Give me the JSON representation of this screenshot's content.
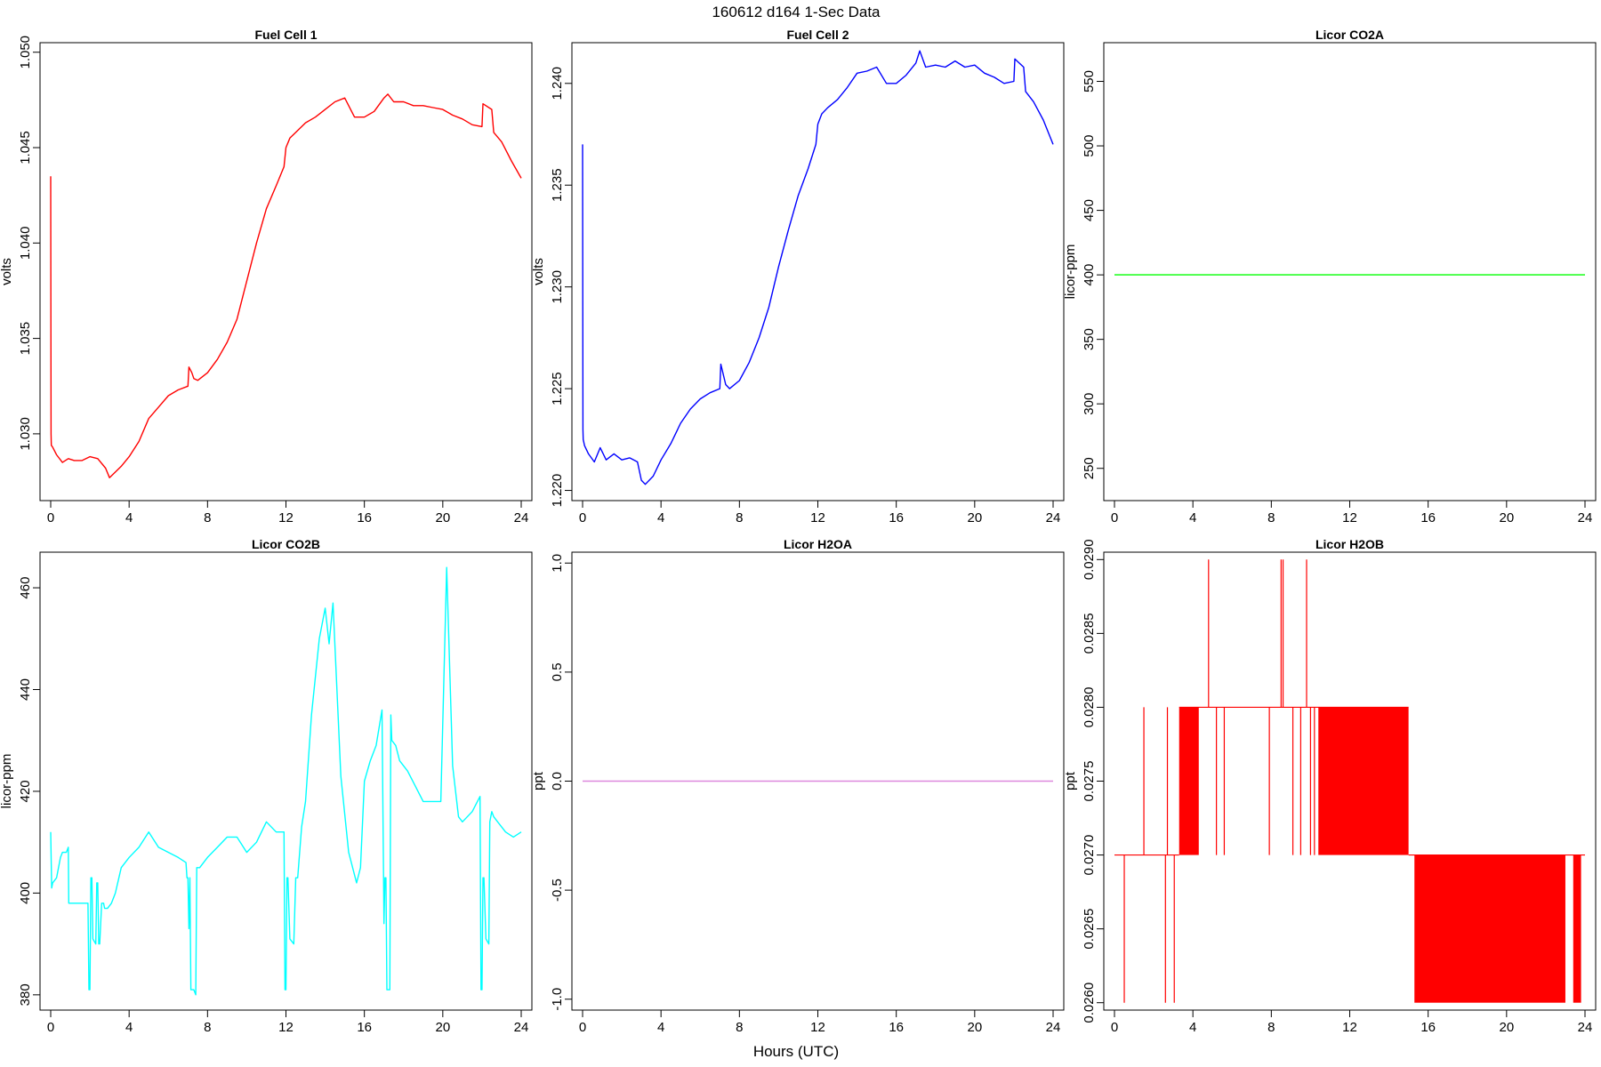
{
  "figure": {
    "title": "160612   d164   1-Sec Data",
    "xlabel": "Hours (UTC)"
  },
  "chart_data": [
    {
      "type": "line",
      "title": "Fuel Cell 1",
      "ylabel": "volts",
      "color": "#ff0000",
      "xlim": [
        0,
        24
      ],
      "ylim": [
        1.0265,
        1.0505
      ],
      "xticks": [
        0,
        4,
        8,
        12,
        16,
        20,
        24
      ],
      "xtick_labels": [
        "0",
        "4",
        "8",
        "12",
        "16",
        "20",
        "24"
      ],
      "yticks": [
        1.03,
        1.035,
        1.04,
        1.045,
        1.05
      ],
      "ytick_labels": [
        "1.030",
        "1.035",
        "1.040",
        "1.045",
        "1.050"
      ],
      "x": [
        0,
        0.02,
        0.03,
        0.1,
        0.3,
        0.6,
        0.9,
        1.2,
        1.6,
        2.0,
        2.4,
        2.8,
        3.0,
        3.2,
        3.6,
        4.0,
        4.5,
        5.0,
        5.5,
        6.0,
        6.5,
        7.0,
        7.05,
        7.2,
        7.3,
        7.5,
        8.0,
        8.5,
        9.0,
        9.5,
        10.0,
        10.5,
        11.0,
        11.5,
        11.9,
        12.0,
        12.2,
        12.5,
        13.0,
        13.5,
        14.0,
        14.5,
        15.0,
        15.5,
        16.0,
        16.5,
        17.0,
        17.2,
        17.5,
        18.0,
        18.5,
        19.0,
        19.5,
        20.0,
        20.5,
        21.0,
        21.5,
        22.0,
        22.05,
        22.5,
        22.6,
        23.0,
        23.5,
        24.0
      ],
      "y": [
        1.0435,
        1.03,
        1.0294,
        1.0293,
        1.0289,
        1.0285,
        1.0287,
        1.0286,
        1.0286,
        1.0288,
        1.0287,
        1.0282,
        1.0277,
        1.0279,
        1.0283,
        1.0288,
        1.0296,
        1.0308,
        1.0314,
        1.032,
        1.0323,
        1.0325,
        1.0335,
        1.0332,
        1.0329,
        1.0328,
        1.0332,
        1.0339,
        1.0348,
        1.036,
        1.038,
        1.04,
        1.0418,
        1.043,
        1.044,
        1.045,
        1.0455,
        1.0458,
        1.0463,
        1.0466,
        1.047,
        1.0474,
        1.0476,
        1.0466,
        1.0466,
        1.0469,
        1.0476,
        1.0478,
        1.0474,
        1.0474,
        1.0472,
        1.0472,
        1.0471,
        1.047,
        1.0467,
        1.0465,
        1.0462,
        1.0461,
        1.0473,
        1.047,
        1.0458,
        1.0453,
        1.0443,
        1.0434
      ]
    },
    {
      "type": "line",
      "title": "Fuel Cell 2",
      "ylabel": "volts",
      "color": "#0000ff",
      "xlim": [
        0,
        24
      ],
      "ylim": [
        1.2195,
        1.242
      ],
      "xticks": [
        0,
        4,
        8,
        12,
        16,
        20,
        24
      ],
      "xtick_labels": [
        "0",
        "4",
        "8",
        "12",
        "16",
        "20",
        "24"
      ],
      "yticks": [
        1.22,
        1.225,
        1.23,
        1.235,
        1.24
      ],
      "ytick_labels": [
        "1.220",
        "1.225",
        "1.230",
        "1.235",
        "1.240"
      ],
      "x": [
        0,
        0.02,
        0.03,
        0.1,
        0.3,
        0.6,
        0.9,
        1.2,
        1.6,
        2.0,
        2.4,
        2.8,
        3.0,
        3.2,
        3.6,
        4.0,
        4.5,
        5.0,
        5.5,
        6.0,
        6.5,
        7.0,
        7.05,
        7.3,
        7.5,
        8.0,
        8.5,
        9.0,
        9.5,
        10.0,
        10.5,
        11.0,
        11.5,
        11.9,
        12.0,
        12.2,
        12.5,
        13.0,
        13.5,
        14.0,
        14.5,
        15.0,
        15.5,
        16.0,
        16.5,
        17.0,
        17.2,
        17.5,
        18.0,
        18.5,
        19.0,
        19.5,
        20.0,
        20.5,
        21.0,
        21.5,
        22.0,
        22.05,
        22.5,
        22.6,
        23.0,
        23.5,
        24.0
      ],
      "y": [
        1.237,
        1.223,
        1.2225,
        1.2222,
        1.2218,
        1.2214,
        1.2221,
        1.2215,
        1.2218,
        1.2215,
        1.2216,
        1.2214,
        1.2205,
        1.2203,
        1.2207,
        1.2215,
        1.2223,
        1.2233,
        1.224,
        1.2245,
        1.2248,
        1.225,
        1.2262,
        1.2252,
        1.225,
        1.2254,
        1.2263,
        1.2275,
        1.229,
        1.231,
        1.2328,
        1.2345,
        1.2358,
        1.237,
        1.238,
        1.2385,
        1.2388,
        1.2392,
        1.2398,
        1.2405,
        1.2406,
        1.2408,
        1.24,
        1.24,
        1.2404,
        1.241,
        1.2416,
        1.2408,
        1.2409,
        1.2408,
        1.2411,
        1.2408,
        1.2409,
        1.2405,
        1.2403,
        1.24,
        1.2401,
        1.2412,
        1.2408,
        1.2396,
        1.2391,
        1.2382,
        1.237
      ]
    },
    {
      "type": "line",
      "title": "Licor CO2A",
      "ylabel": "licor-ppm",
      "color": "#00ff00",
      "xlim": [
        0,
        24
      ],
      "ylim": [
        225,
        580
      ],
      "xticks": [
        0,
        4,
        8,
        12,
        16,
        20,
        24
      ],
      "xtick_labels": [
        "0",
        "4",
        "8",
        "12",
        "16",
        "20",
        "24"
      ],
      "yticks": [
        250,
        300,
        350,
        400,
        450,
        500,
        550
      ],
      "ytick_labels": [
        "250",
        "300",
        "350",
        "400",
        "450",
        "500",
        "550"
      ],
      "x": [
        0,
        24
      ],
      "y": [
        400,
        400
      ]
    },
    {
      "type": "line",
      "title": "Licor CO2B",
      "ylabel": "licor-ppm",
      "color": "#00ffff",
      "xlim": [
        0,
        24
      ],
      "ylim": [
        377,
        467
      ],
      "xticks": [
        0,
        4,
        8,
        12,
        16,
        20,
        24
      ],
      "xtick_labels": [
        "0",
        "4",
        "8",
        "12",
        "16",
        "20",
        "24"
      ],
      "yticks": [
        380,
        400,
        420,
        440,
        460
      ],
      "ytick_labels": [
        "380",
        "400",
        "420",
        "440",
        "460"
      ],
      "x": [
        0,
        0.05,
        0.1,
        0.3,
        0.5,
        0.6,
        0.8,
        0.9,
        0.92,
        1.2,
        1.5,
        1.9,
        1.95,
        2.0,
        2.05,
        2.1,
        2.15,
        2.3,
        2.35,
        2.4,
        2.45,
        2.5,
        2.6,
        2.7,
        2.75,
        2.9,
        3.1,
        3.3,
        3.6,
        4.0,
        4.5,
        5.0,
        5.5,
        6.0,
        6.5,
        6.9,
        6.95,
        7.0,
        7.05,
        7.1,
        7.15,
        7.3,
        7.4,
        7.45,
        7.6,
        8.0,
        8.5,
        9.0,
        9.5,
        10.0,
        10.5,
        11.0,
        11.5,
        11.9,
        11.95,
        12.0,
        12.05,
        12.1,
        12.2,
        12.4,
        12.5,
        12.6,
        12.8,
        13.0,
        13.3,
        13.7,
        14.0,
        14.2,
        14.4,
        14.6,
        14.8,
        15.2,
        15.6,
        15.8,
        16.0,
        16.3,
        16.6,
        16.9,
        17.0,
        17.05,
        17.1,
        17.15,
        17.3,
        17.35,
        17.4,
        17.6,
        17.8,
        18.2,
        18.6,
        19.0,
        19.5,
        19.9,
        20.2,
        20.5,
        20.8,
        21.0,
        21.5,
        21.9,
        21.95,
        22.0,
        22.05,
        22.1,
        22.2,
        22.35,
        22.4,
        22.5,
        22.6,
        22.8,
        23.2,
        23.6,
        24.0
      ],
      "y": [
        412,
        401,
        402,
        403,
        407,
        408,
        408,
        409,
        398,
        398,
        398,
        398,
        381,
        381,
        403,
        403,
        391,
        390,
        402,
        402,
        390,
        390,
        398,
        398,
        397,
        397,
        398,
        400,
        405,
        407,
        409,
        412,
        409,
        408,
        407,
        406,
        403,
        403,
        393,
        403,
        381,
        381,
        380,
        405,
        405,
        407,
        409,
        411,
        411,
        408,
        410,
        414,
        412,
        412,
        381,
        381,
        403,
        403,
        391,
        390,
        403,
        403,
        413,
        418,
        435,
        450,
        456,
        449,
        457,
        440,
        423,
        408,
        402,
        405,
        422,
        426,
        429,
        436,
        394,
        403,
        403,
        381,
        381,
        435,
        430,
        429,
        426,
        424,
        421,
        418,
        418,
        418,
        464,
        425,
        415,
        414,
        416,
        419,
        381,
        381,
        403,
        403,
        391,
        390,
        414,
        416,
        415,
        414,
        412,
        411,
        412
      ]
    },
    {
      "type": "line",
      "title": "Licor H2OA",
      "ylabel": "ppt",
      "color": "#dd88dd",
      "xlim": [
        0,
        24
      ],
      "ylim": [
        -1.05,
        1.05
      ],
      "xticks": [
        0,
        4,
        8,
        12,
        16,
        20,
        24
      ],
      "xtick_labels": [
        "0",
        "4",
        "8",
        "12",
        "16",
        "20",
        "24"
      ],
      "yticks": [
        -1.0,
        -0.5,
        0.0,
        0.5,
        1.0
      ],
      "ytick_labels": [
        "-1.0",
        "-0.5",
        "0.0",
        "0.5",
        "1.0"
      ],
      "x": [
        0,
        24
      ],
      "y": [
        0,
        0
      ]
    },
    {
      "type": "line",
      "title": "Licor H2OB",
      "ylabel": "ppt",
      "color": "#ff0000",
      "xlim": [
        0,
        24
      ],
      "ylim": [
        0.02595,
        0.02905
      ],
      "xticks": [
        0,
        4,
        8,
        12,
        16,
        20,
        24
      ],
      "xtick_labels": [
        "0",
        "4",
        "8",
        "12",
        "16",
        "20",
        "24"
      ],
      "yticks": [
        0.026,
        0.0265,
        0.027,
        0.0275,
        0.028,
        0.0285,
        0.029
      ],
      "ytick_labels": [
        "0.0260",
        "0.0265",
        "0.0270",
        "0.0275",
        "0.0280",
        "0.0285",
        "0.0290"
      ],
      "baseline_segments": [
        [
          0,
          3.3,
          0.027
        ],
        [
          3.3,
          15.0,
          0.028
        ],
        [
          15.0,
          24.0,
          0.027
        ]
      ],
      "dense_fill": [
        [
          3.3,
          4.3,
          0.027,
          0.028
        ],
        [
          10.4,
          15.0,
          0.027,
          0.028
        ],
        [
          15.3,
          23.0,
          0.026,
          0.027
        ],
        [
          23.4,
          23.8,
          0.026,
          0.027
        ]
      ],
      "spikes": [
        [
          0.5,
          0.027,
          0.026
        ],
        [
          1.5,
          0.027,
          0.028
        ],
        [
          2.6,
          0.027,
          0.026
        ],
        [
          2.7,
          0.027,
          0.028
        ],
        [
          3.05,
          0.027,
          0.026
        ],
        [
          4.8,
          0.028,
          0.029
        ],
        [
          5.2,
          0.028,
          0.027
        ],
        [
          5.6,
          0.028,
          0.027
        ],
        [
          7.9,
          0.028,
          0.027
        ],
        [
          8.5,
          0.028,
          0.029
        ],
        [
          8.6,
          0.028,
          0.029
        ],
        [
          9.1,
          0.028,
          0.027
        ],
        [
          9.5,
          0.028,
          0.027
        ],
        [
          9.8,
          0.028,
          0.029
        ],
        [
          10.0,
          0.028,
          0.027
        ],
        [
          10.2,
          0.028,
          0.027
        ]
      ]
    }
  ]
}
